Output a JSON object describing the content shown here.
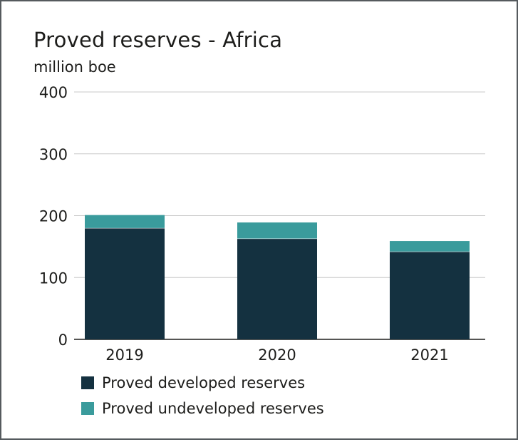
{
  "chart_data": {
    "type": "bar",
    "stacked": true,
    "title": "Proved reserves - Africa",
    "subtitle": "million boe",
    "categories": [
      "2019",
      "2020",
      "2021"
    ],
    "series": [
      {
        "name": "Proved developed reserves",
        "values": [
          180,
          163,
          142
        ],
        "color": "#143140"
      },
      {
        "name": "Proved undeveloped reserves",
        "values": [
          21,
          26,
          17
        ],
        "color": "#3a9b9c"
      }
    ],
    "ylim": [
      0,
      400
    ],
    "yticks": [
      0,
      100,
      200,
      300,
      400
    ],
    "grid": true,
    "legend": "bottom-left"
  }
}
